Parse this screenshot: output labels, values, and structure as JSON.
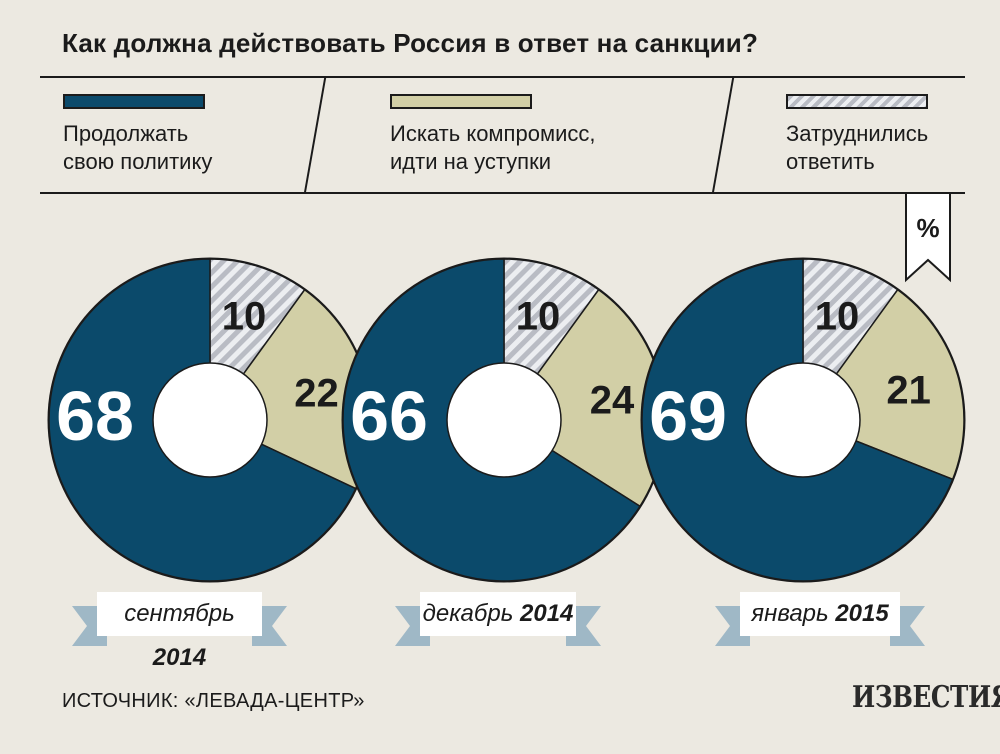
{
  "title": "Как должна действовать Россия в ответ на санкции?",
  "legend": [
    {
      "lines": [
        "Продолжать",
        "свою политику"
      ],
      "color": "#0b4a6b",
      "pattern": "solid"
    },
    {
      "lines": [
        "Искать компромисс,",
        "идти на уступки"
      ],
      "color": "#d2cfa6",
      "pattern": "solid"
    },
    {
      "lines": [
        "Затруднились",
        "ответить"
      ],
      "color": "#ccced3",
      "pattern": "hatched"
    }
  ],
  "unit_label": "%",
  "source": "ИСТОЧНИК: «ЛЕВАДА-ЦЕНТР»",
  "logo": "ИЗВЕСТИЯ",
  "chart_data": {
    "type": "pie",
    "title": "Как должна действовать Россия в ответ на санкции?",
    "unit": "%",
    "categories": [
      "Продолжать свою политику",
      "Искать компромисс, идти на уступки",
      "Затруднились ответить"
    ],
    "charts": [
      {
        "date_prefix": "сентябрь",
        "date_year": "2014",
        "values": [
          68,
          22,
          10
        ]
      },
      {
        "date_prefix": "декабрь",
        "date_year": "2014",
        "values": [
          66,
          24,
          10
        ]
      },
      {
        "date_prefix": "январь",
        "date_year": "2015",
        "values": [
          69,
          21,
          10
        ]
      }
    ]
  }
}
